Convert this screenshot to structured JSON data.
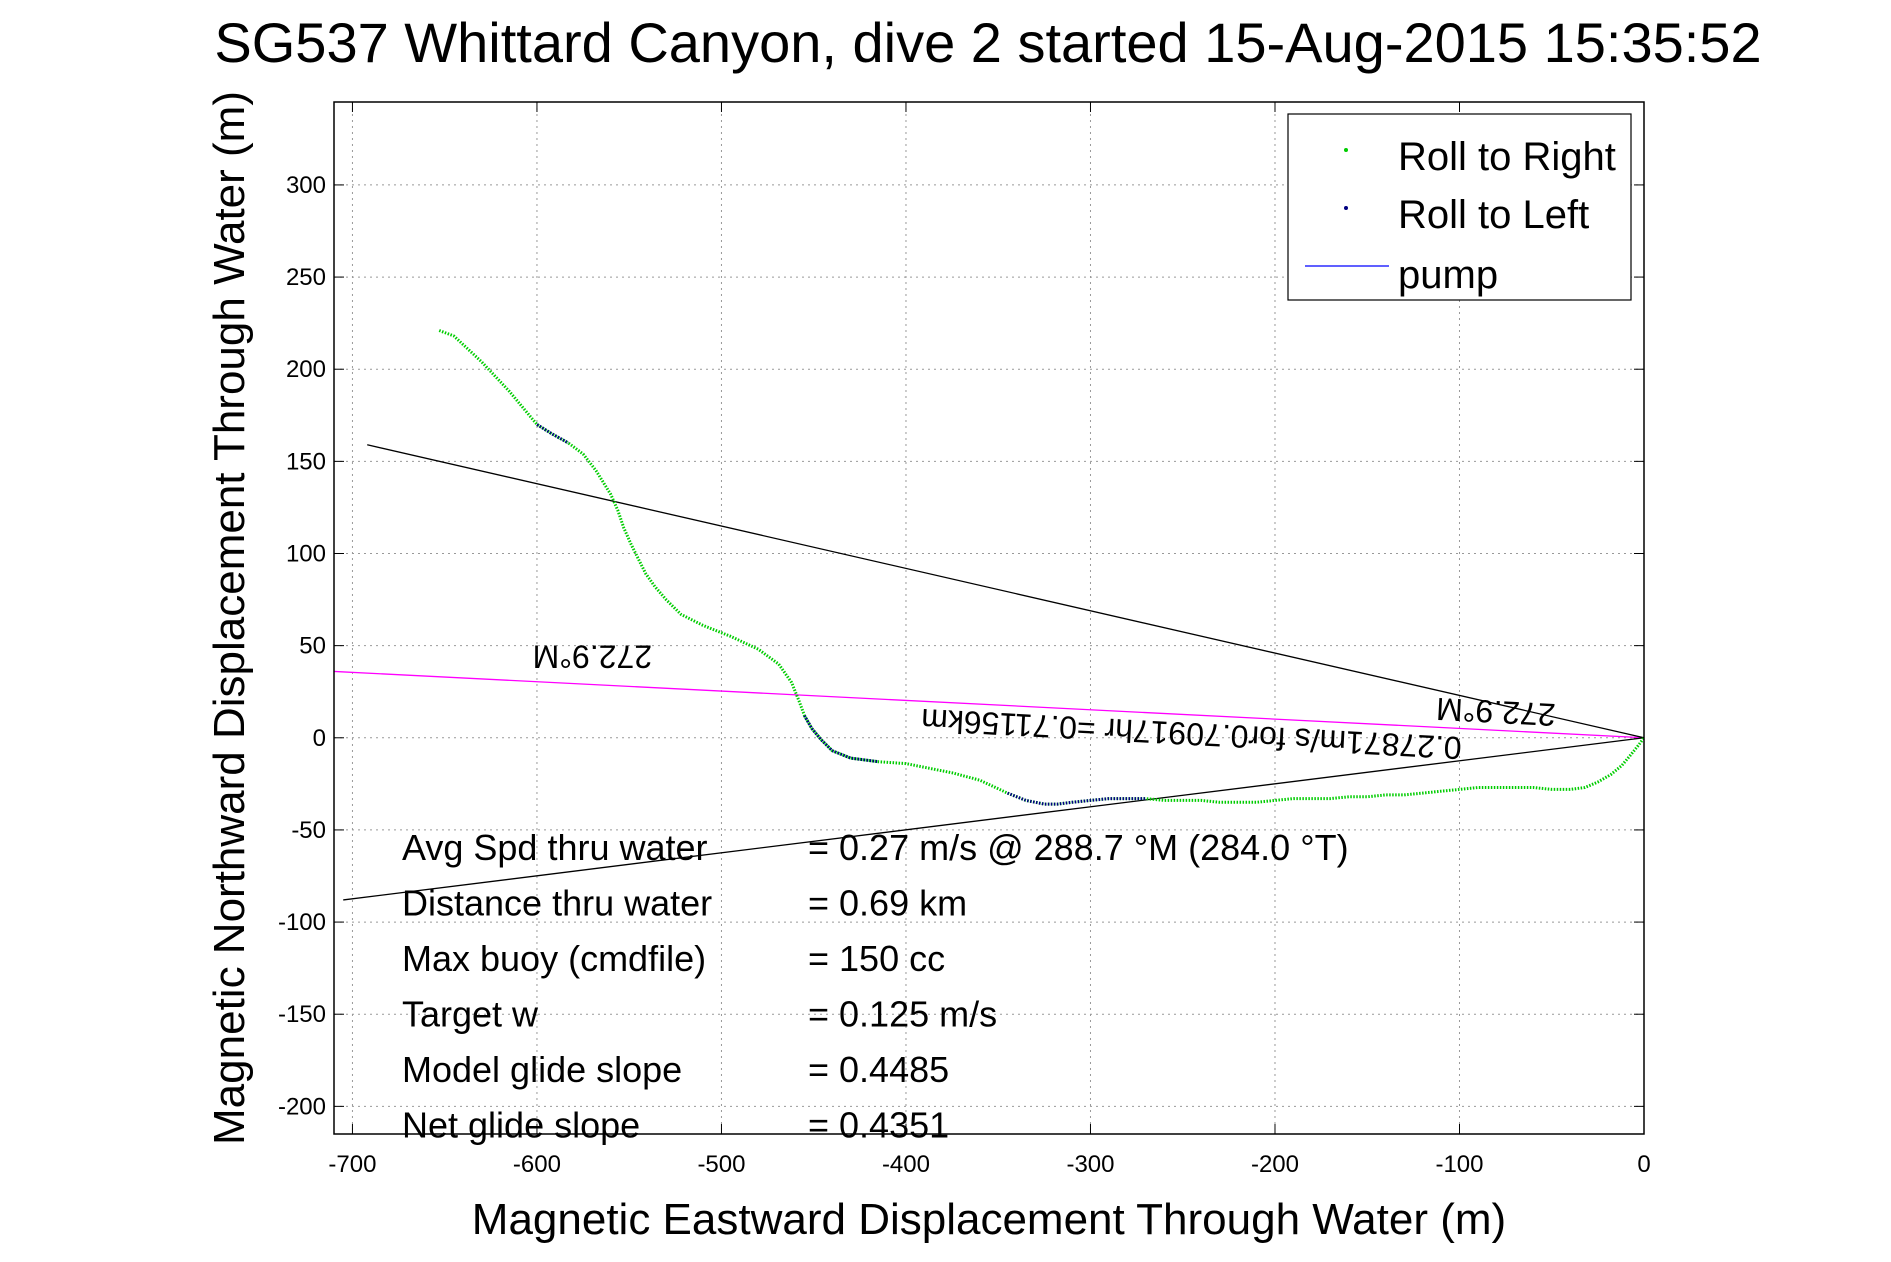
{
  "chart_data": {
    "type": "line",
    "title": "SG537 Whittard Canyon, dive 2 started 15-Aug-2015 15:35:52",
    "xlabel": "Magnetic Eastward Displacement Through Water (m)",
    "ylabel": "Magnetic Northward Displacement Through Water (m)",
    "xlim": [
      -710,
      0
    ],
    "ylim": [
      -215,
      345
    ],
    "xticks": [
      -700,
      -600,
      -500,
      -400,
      -300,
      -200,
      -100,
      0
    ],
    "yticks": [
      300,
      250,
      200,
      150,
      100,
      50,
      0,
      -50,
      -100,
      -150,
      -200
    ],
    "grid": true,
    "legend_position": "top-right",
    "legend": [
      {
        "label": "Roll to Right",
        "color": "#00cc00",
        "style": "dot"
      },
      {
        "label": "Roll to Left",
        "color": "#000080",
        "style": "dot"
      },
      {
        "label": "pump",
        "color": "#0000ff",
        "style": "line"
      }
    ],
    "series": [
      {
        "name": "Roll to Right",
        "color": "#00cc00",
        "x": [
          -653,
          -645,
          -630,
          -615,
          -600,
          -592,
          -583,
          -575,
          -568,
          -560,
          -556,
          -553,
          -549,
          -545,
          -541,
          -536,
          -530,
          -522,
          -510,
          -495,
          -480,
          -469,
          -462,
          -458,
          -455,
          -451,
          -446,
          -440,
          -430,
          -415,
          -400,
          -390,
          -375,
          -360,
          -345,
          -335,
          -325,
          -318,
          -310,
          -300,
          -290,
          -280,
          -270,
          -260,
          -250,
          -240,
          -230,
          -220,
          -210,
          -200,
          -190,
          -180,
          -170,
          -160,
          -150,
          -140,
          -130,
          -120,
          -110,
          -100,
          -90,
          -80,
          -70,
          -60,
          -50,
          -40,
          -32,
          -25,
          -18,
          -12,
          -7,
          -3,
          0
        ],
        "y": [
          221,
          218,
          204,
          188,
          170,
          165,
          160,
          154,
          145,
          132,
          123,
          114,
          105,
          97,
          89,
          82,
          75,
          67,
          61,
          55,
          48,
          40,
          30,
          20,
          12,
          5,
          -1,
          -7,
          -11,
          -13,
          -14,
          -16,
          -19,
          -23,
          -30,
          -34,
          -36,
          -36,
          -35,
          -34,
          -33,
          -33,
          -33,
          -34,
          -34,
          -34,
          -35,
          -35,
          -35,
          -34,
          -33,
          -33,
          -33,
          -32,
          -32,
          -31,
          -31,
          -30,
          -29,
          -28,
          -27,
          -27,
          -27,
          -27,
          -28,
          -28,
          -27,
          -24,
          -20,
          -15,
          -9,
          -4,
          0
        ]
      },
      {
        "name": "Roll to Left",
        "color": "#000080",
        "segments": [
          {
            "x": [
              -600,
              -592,
              -583
            ],
            "y": [
              170,
              165,
              160
            ]
          },
          {
            "x": [
              -455,
              -451,
              -446,
              -440,
              -430,
              -415
            ],
            "y": [
              12,
              5,
              -1,
              -7,
              -11,
              -13
            ]
          },
          {
            "x": [
              -345,
              -335,
              -325,
              -318,
              -310,
              -300,
              -290,
              -280,
              -270
            ],
            "y": [
              -30,
              -34,
              -36,
              -36,
              -35,
              -34,
              -33,
              -33,
              -33
            ]
          }
        ]
      }
    ],
    "reference_lines": [
      {
        "name": "magenta heading line",
        "color": "#ff00ff",
        "x": [
          -710,
          0
        ],
        "y": [
          36,
          0
        ]
      },
      {
        "name": "upper black line",
        "color": "#000000",
        "x": [
          -692,
          0
        ],
        "y": [
          159,
          0
        ]
      },
      {
        "name": "lower black line",
        "color": "#000000",
        "x": [
          -705,
          0
        ],
        "y": [
          -88,
          0
        ]
      }
    ],
    "annotations": [
      {
        "text": "272.9°M",
        "x": -570,
        "y": 50,
        "rotated": 180
      },
      {
        "text": "0.27871m/s for0.70917hr =0.71156km",
        "x": -245,
        "y": 8,
        "rotated": 183
      },
      {
        "text": "272.9°M",
        "x": -80,
        "y": 20,
        "rotated": 183
      }
    ],
    "stats": [
      {
        "label": "Avg Spd thru water",
        "value": "=  0.27 m/s @ 288.7 °M (284.0 °T)"
      },
      {
        "label": "Distance thru water",
        "value": "=  0.69 km"
      },
      {
        "label": "Max buoy (cmdfile)",
        "value": "= 150 cc"
      },
      {
        "label": "Target w",
        "value": "= 0.125 m/s"
      },
      {
        "label": "Model glide slope",
        "value": "= 0.4485"
      },
      {
        "label": "Net glide slope",
        "value": "= 0.4351"
      }
    ]
  }
}
